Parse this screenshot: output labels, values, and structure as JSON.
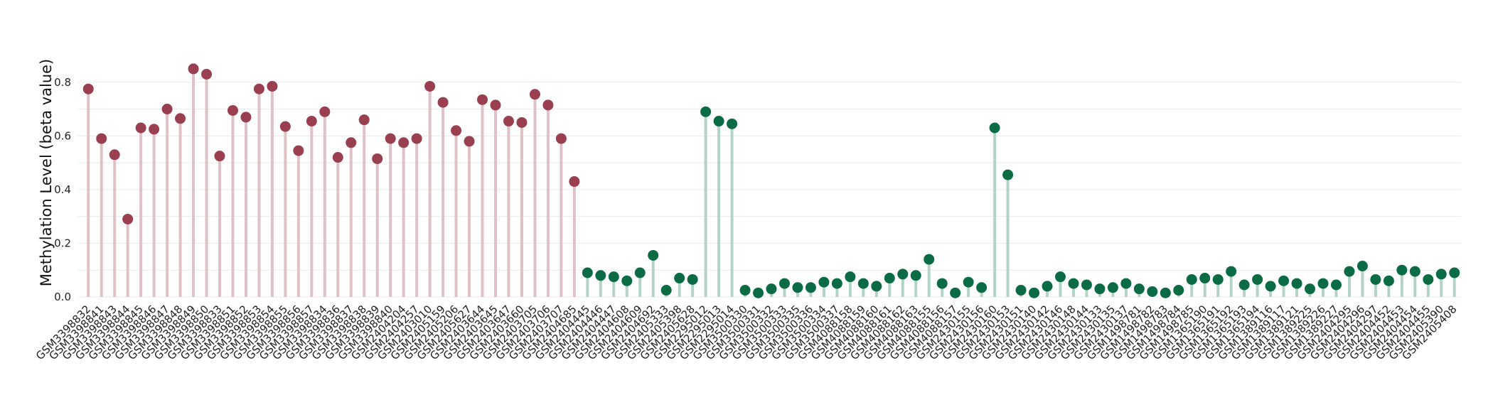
{
  "chart_data": {
    "type": "lollipop",
    "ylabel": "Methylation Level (beta value)",
    "ylim": [
      0,
      0.9
    ],
    "yticks": [
      0.0,
      0.2,
      0.4,
      0.6,
      0.8
    ],
    "yticks_labels": [
      "0.0",
      "0.2",
      "0.4",
      "0.6",
      "0.8"
    ],
    "grid": true,
    "colors": {
      "group1_point": "#9a3f4f",
      "group1_stem": "#dfc1c8",
      "group2_point": "#0b6b45",
      "group2_stem": "#b3d3c6",
      "grid": "#ebebeb"
    },
    "series": [
      {
        "group": 1,
        "categories": [
          "GSM3398832",
          "GSM3398841",
          "GSM3398843",
          "GSM3398844",
          "GSM3398845",
          "GSM3398846",
          "GSM3398847",
          "GSM3398848",
          "GSM3398849",
          "GSM3398850",
          "GSM3398833",
          "GSM3398851",
          "GSM3398852",
          "GSM3398853",
          "GSM3398854",
          "GSM3398855",
          "GSM3398856",
          "GSM3398857",
          "GSM3398834",
          "GSM3398836",
          "GSM3398837",
          "GSM3398838",
          "GSM3398839",
          "GSM3398840",
          "GSM2404204",
          "GSM2404257",
          "GSM2403010",
          "GSM2405159",
          "GSM2405206",
          "GSM2405627",
          "GSM2403644",
          "GSM2403645",
          "GSM2403647",
          "GSM2403660",
          "GSM2403705",
          "GSM2403706",
          "GSM2403707",
          "GSM2404685"
        ],
        "values": [
          0.775,
          0.59,
          0.53,
          0.29,
          0.63,
          0.625,
          0.7,
          0.665,
          0.85,
          0.83,
          0.525,
          0.695,
          0.67,
          0.775,
          0.785,
          0.635,
          0.545,
          0.655,
          0.69,
          0.52,
          0.575,
          0.66,
          0.515,
          0.59,
          0.575,
          0.59,
          0.785,
          0.725,
          0.62,
          0.58,
          0.735,
          0.715,
          0.655,
          0.65,
          0.755,
          0.715,
          0.59,
          0.43
        ]
      },
      {
        "group": 2,
        "categories": [
          "GSM2404445",
          "GSM2404446",
          "GSM2404447",
          "GSM2404608",
          "GSM2404609",
          "GSM2404692",
          "GSM2405333",
          "GSM2405398",
          "GSM2405628",
          "GSM2295012",
          "GSM2295013",
          "GSM2295014",
          "GSM3500330",
          "GSM3500331",
          "GSM3500332",
          "GSM3500333",
          "GSM3500335",
          "GSM3500336",
          "GSM3500334",
          "GSM3500337",
          "GSM4088158",
          "GSM4088159",
          "GSM4088160",
          "GSM4088161",
          "GSM4088162",
          "GSM4088163",
          "GSM4088155",
          "GSM4088156",
          "GSM4088157",
          "GSM2430155",
          "GSM2430156",
          "GSM2430160",
          "GSM2430153",
          "GSM2430151",
          "GSM2430140",
          "GSM2430142",
          "GSM2430146",
          "GSM2430148",
          "GSM2430144",
          "GSM2430133",
          "GSM2430135",
          "GSM2430137",
          "GSM1498781",
          "GSM1498782",
          "GSM1498783",
          "GSM1498784",
          "GSM1498785",
          "GSM1365190",
          "GSM1365191",
          "GSM1365192",
          "GSM1365193",
          "GSM1365194",
          "GSM1389116",
          "GSM1389117",
          "GSM1389121",
          "GSM1389225",
          "GSM1389226",
          "GSM1389227",
          "GSM2404295",
          "GSM2404296",
          "GSM2404297",
          "GSM2404452",
          "GSM2404453",
          "GSM2404454",
          "GSM2404455",
          "GSM2405390",
          "GSM2405408"
        ],
        "values": [
          0.09,
          0.08,
          0.075,
          0.06,
          0.09,
          0.155,
          0.025,
          0.07,
          0.065,
          0.69,
          0.655,
          0.645,
          0.025,
          0.015,
          0.03,
          0.05,
          0.035,
          0.035,
          0.055,
          0.05,
          0.075,
          0.05,
          0.04,
          0.07,
          0.085,
          0.08,
          0.14,
          0.05,
          0.015,
          0.055,
          0.035,
          0.63,
          0.455,
          0.025,
          0.015,
          0.04,
          0.075,
          0.05,
          0.045,
          0.03,
          0.035,
          0.05,
          0.03,
          0.02,
          0.015,
          0.025,
          0.065,
          0.07,
          0.065,
          0.095,
          0.045,
          0.065,
          0.04,
          0.06,
          0.05,
          0.03,
          0.05,
          0.045,
          0.095,
          0.115,
          0.065,
          0.06,
          0.1,
          0.095,
          0.065,
          0.085,
          0.09
        ]
      }
    ]
  }
}
